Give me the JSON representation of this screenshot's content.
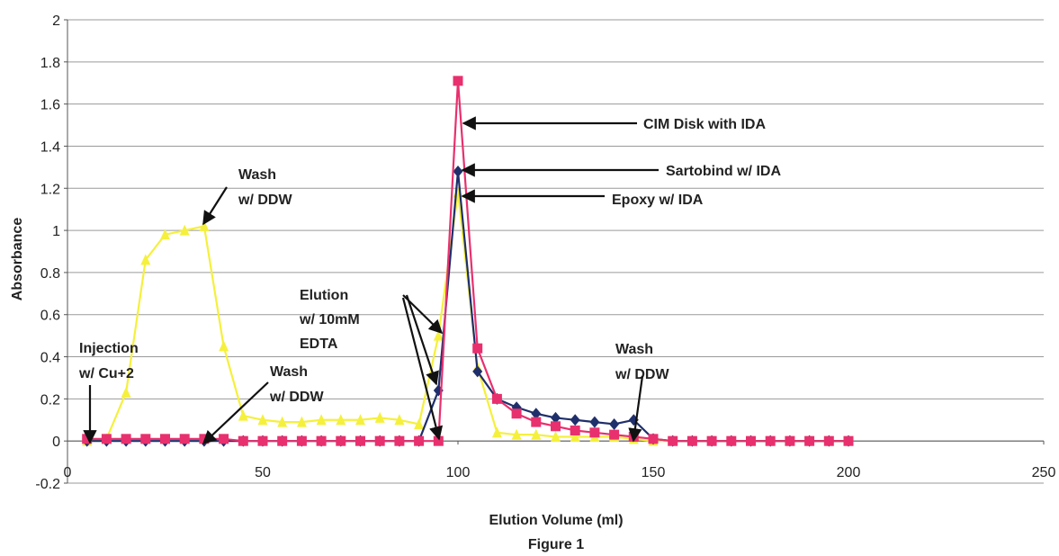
{
  "chart_data": {
    "type": "line",
    "xlabel": "Elution Volume (ml)",
    "ylabel": "Absorbance",
    "caption": "Figure 1",
    "xlim": [
      0,
      250
    ],
    "ylim": [
      -0.2,
      2
    ],
    "xticks": [
      0,
      50,
      100,
      150,
      200,
      250
    ],
    "yticks": [
      -0.2,
      0,
      0.2,
      0.4,
      0.6,
      0.8,
      1,
      1.2,
      1.4,
      1.6,
      1.8,
      2
    ],
    "grid": "horizontal",
    "series": [
      {
        "color": "#f5f03c",
        "marker": "triangle",
        "x": [
          5,
          10,
          15,
          20,
          25,
          30,
          35,
          40,
          45,
          50,
          55,
          60,
          65,
          70,
          75,
          80,
          85,
          90,
          95,
          100,
          105,
          110,
          115,
          120,
          125,
          130,
          135,
          140,
          145,
          150,
          155,
          160,
          165,
          170,
          175,
          180,
          185,
          190,
          195,
          200
        ],
        "y": [
          0,
          0.01,
          0.23,
          0.86,
          0.98,
          1.0,
          1.02,
          0.45,
          0.12,
          0.1,
          0.09,
          0.09,
          0.1,
          0.1,
          0.1,
          0.11,
          0.1,
          0.08,
          0.5,
          1.18,
          0.35,
          0.04,
          0.03,
          0.03,
          0.02,
          0.02,
          0.02,
          0.02,
          0.01,
          0,
          0,
          0,
          0,
          0,
          0,
          0,
          0,
          0,
          0,
          0
        ]
      },
      {
        "color": "#1f2f6b",
        "marker": "diamond",
        "x": [
          5,
          10,
          15,
          20,
          25,
          30,
          35,
          40,
          45,
          50,
          55,
          60,
          65,
          70,
          75,
          80,
          85,
          90,
          95,
          100,
          105,
          110,
          115,
          120,
          125,
          130,
          135,
          140,
          145,
          150,
          155,
          160,
          165,
          170,
          175,
          180,
          185,
          190,
          195,
          200
        ],
        "y": [
          0,
          0,
          0,
          0,
          0,
          0,
          0,
          0,
          0,
          0,
          0,
          0,
          0,
          0,
          0,
          0,
          0,
          0,
          0.24,
          1.28,
          0.33,
          0.2,
          0.16,
          0.13,
          0.11,
          0.1,
          0.09,
          0.08,
          0.1,
          0.01,
          0,
          0,
          0,
          0,
          0,
          0,
          0,
          0,
          0,
          0
        ]
      },
      {
        "color": "#e8306e",
        "marker": "square",
        "x": [
          5,
          10,
          15,
          20,
          25,
          30,
          35,
          40,
          45,
          50,
          55,
          60,
          65,
          70,
          75,
          80,
          85,
          90,
          95,
          100,
          105,
          110,
          115,
          120,
          125,
          130,
          135,
          140,
          145,
          150,
          155,
          160,
          165,
          170,
          175,
          180,
          185,
          190,
          195,
          200
        ],
        "y": [
          0.01,
          0.01,
          0.01,
          0.01,
          0.01,
          0.01,
          0.01,
          0.01,
          0,
          0,
          0,
          0,
          0,
          0,
          0,
          0,
          0,
          0,
          0,
          1.71,
          0.44,
          0.2,
          0.13,
          0.09,
          0.07,
          0.05,
          0.04,
          0.03,
          0.02,
          0.01,
          0,
          0,
          0,
          0,
          0,
          0,
          0,
          0,
          0,
          0
        ]
      }
    ],
    "annotations": [
      {
        "lines": [
          "Injection",
          "w/ Cu+2"
        ]
      },
      {
        "lines": [
          "Wash",
          "w/ DDW"
        ]
      },
      {
        "lines": [
          "Wash",
          "w/ DDW"
        ]
      },
      {
        "lines": [
          "Elution",
          "w/ 10mM",
          "EDTA"
        ]
      },
      {
        "lines": [
          "CIM Disk with IDA"
        ]
      },
      {
        "lines": [
          "Sartobind w/ IDA"
        ]
      },
      {
        "lines": [
          "Epoxy w/ IDA"
        ]
      },
      {
        "lines": [
          "Wash",
          "w/ DDW"
        ]
      }
    ]
  }
}
